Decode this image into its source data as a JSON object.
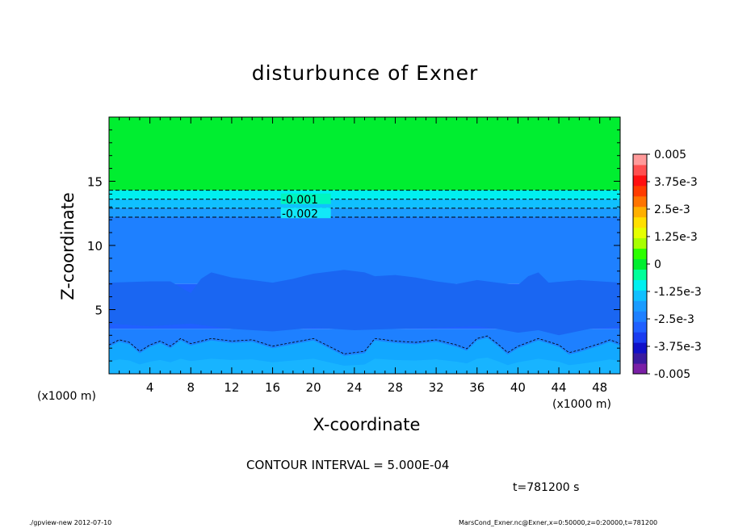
{
  "chart_data": {
    "type": "heatmap",
    "title": "disturbunce of Exner",
    "xlabel": "X-coordinate",
    "ylabel": "Z-coordinate",
    "x_unit": "(x1000 m)",
    "xlim": [
      0,
      50
    ],
    "ylim": [
      0,
      20
    ],
    "x_ticks": [
      4,
      8,
      12,
      16,
      20,
      24,
      28,
      32,
      36,
      40,
      44,
      48
    ],
    "y_ticks": [
      5,
      10,
      15
    ],
    "colorbar": {
      "levels": [
        -0.005,
        -0.0045,
        -0.004,
        -0.0035,
        -0.003,
        -0.0025,
        -0.002,
        -0.0015,
        -0.001,
        -0.0005,
        0,
        0.0005,
        0.001,
        0.0015,
        0.002,
        0.0025,
        0.003,
        0.0035,
        0.004,
        0.0045,
        0.005
      ],
      "colors": [
        "#7a1fa6",
        "#3a1aa0",
        "#1010c8",
        "#1a3cf0",
        "#2060ff",
        "#1e80ff",
        "#1a9cff",
        "#10c0ff",
        "#00f0f0",
        "#00ff9a",
        "#00ee30",
        "#2cff00",
        "#a8ff00",
        "#e6ff00",
        "#ffe000",
        "#ffb000",
        "#ff7400",
        "#ff3c00",
        "#ff1010",
        "#ff5050",
        "#ff9a9a"
      ],
      "labels": [
        "-0.005",
        "-3.75e-3",
        "-2.5e-3",
        "-1.25e-3",
        "0",
        "1.25e-3",
        "2.5e-3",
        "3.75e-3",
        "0.005"
      ]
    },
    "contour_labels": [
      {
        "text": "-0.001",
        "value": -0.001
      },
      {
        "text": "-0.002",
        "value": -0.002
      }
    ],
    "band_levels": [
      {
        "from": 14.3,
        "to": 20,
        "value": 0.0002
      },
      {
        "from": 13.6,
        "to": 14.3,
        "value": -0.0007
      },
      {
        "from": 12.9,
        "to": 13.6,
        "value": -0.0012
      },
      {
        "from": 12.2,
        "to": 12.9,
        "value": -0.0018
      },
      {
        "from": 7.0,
        "to": 12.2,
        "value": -0.0023
      },
      {
        "from": 3.5,
        "to": 7.0,
        "value": -0.0028
      },
      {
        "from": 0,
        "to": 3.5,
        "value": -0.0021
      }
    ]
  },
  "annotations": {
    "contour_interval": "CONTOUR INTERVAL = 5.000E-04",
    "time": "t=781200  s",
    "footer_left": "./gpview-new   2012-07-10",
    "footer_right": "MarsCond_Exner.nc@Exner,x=0:50000,z=0:20000,t=781200"
  }
}
